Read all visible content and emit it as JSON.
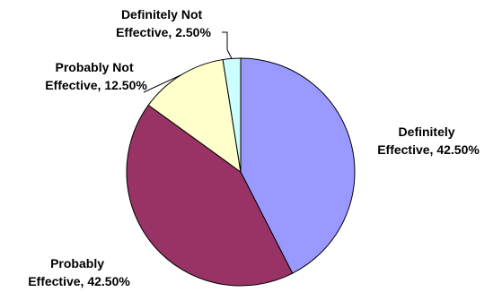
{
  "chart_data": {
    "type": "pie",
    "title": "",
    "slices": [
      {
        "category": "Definitely Effective",
        "value": 42.5,
        "label_line1": "Definitely",
        "label_line2": "Effective, 42.50%",
        "color": "#9999ff"
      },
      {
        "category": "Probably Effective",
        "value": 42.5,
        "label_line1": "Probably",
        "label_line2": "Effective, 42.50%",
        "color": "#993366"
      },
      {
        "category": "Probably Not Effective",
        "value": 12.5,
        "label_line1": "Probably Not",
        "label_line2": "Effective, 12.50%",
        "color": "#ffffcc"
      },
      {
        "category": "Definitely Not Effective",
        "value": 2.5,
        "label_line1": "Definitely Not",
        "label_line2": "Effective, 2.50%",
        "color": "#ccffff"
      }
    ],
    "legend": "none",
    "value_unit": "%"
  }
}
